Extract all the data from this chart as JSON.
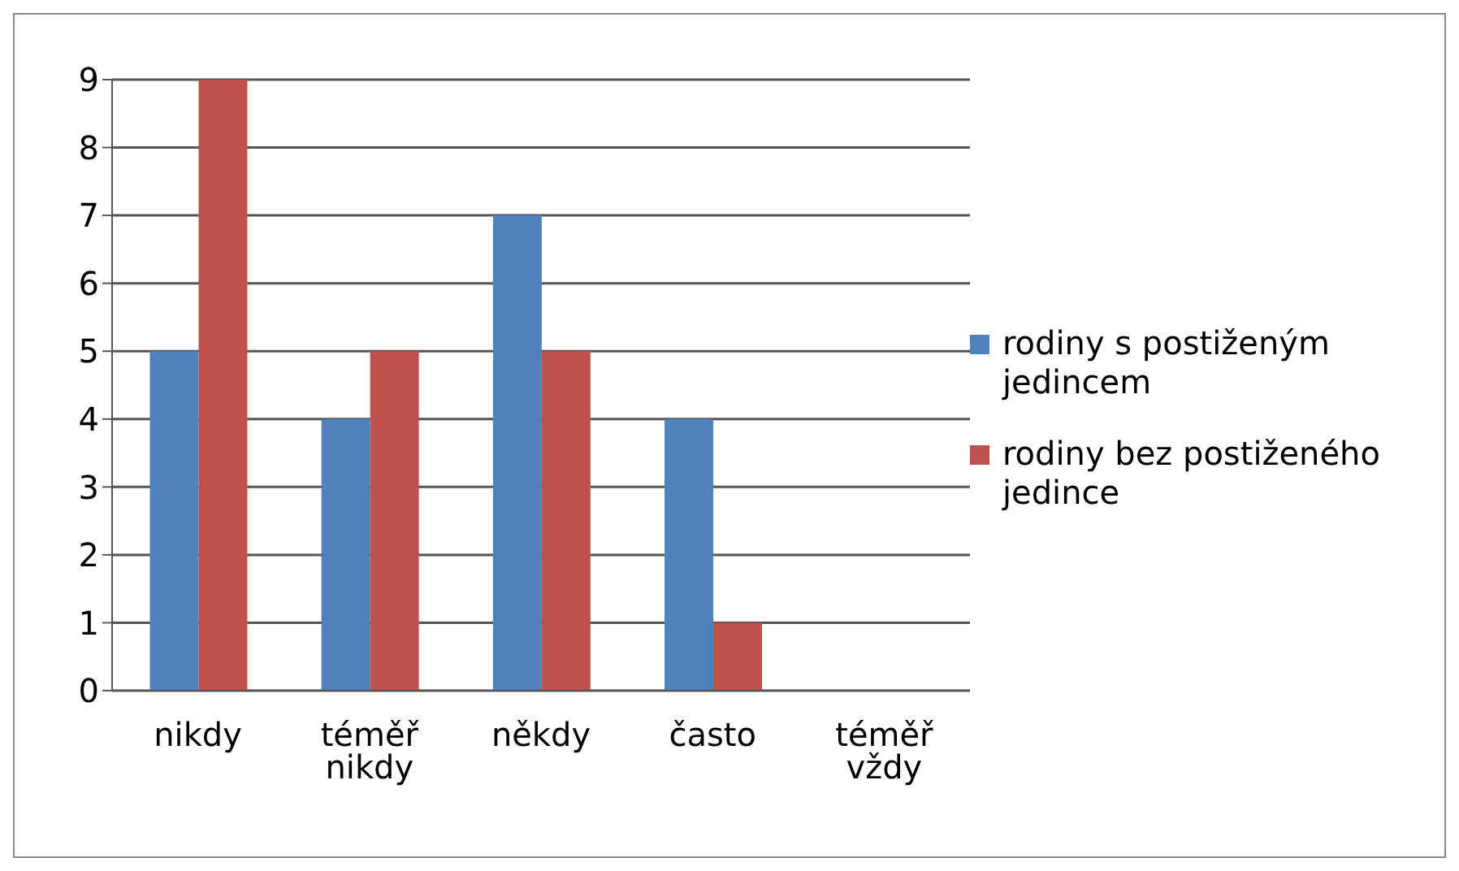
{
  "chart_data": {
    "type": "bar",
    "categories": [
      "nikdy",
      "téměř nikdy",
      "někdy",
      "často",
      "téměř vždy"
    ],
    "series": [
      {
        "name": "rodiny s postiženým jedincem",
        "color": "#4f81bd",
        "values": [
          5,
          4,
          7,
          4,
          0
        ]
      },
      {
        "name": "rodiny bez postiženého jedince",
        "color": "#c0504d",
        "values": [
          9,
          5,
          5,
          1,
          0
        ]
      }
    ],
    "ylim": [
      0,
      9
    ],
    "yticks": [
      0,
      1,
      2,
      3,
      4,
      5,
      6,
      7,
      8,
      9
    ],
    "grid": "y",
    "legend": "right"
  }
}
